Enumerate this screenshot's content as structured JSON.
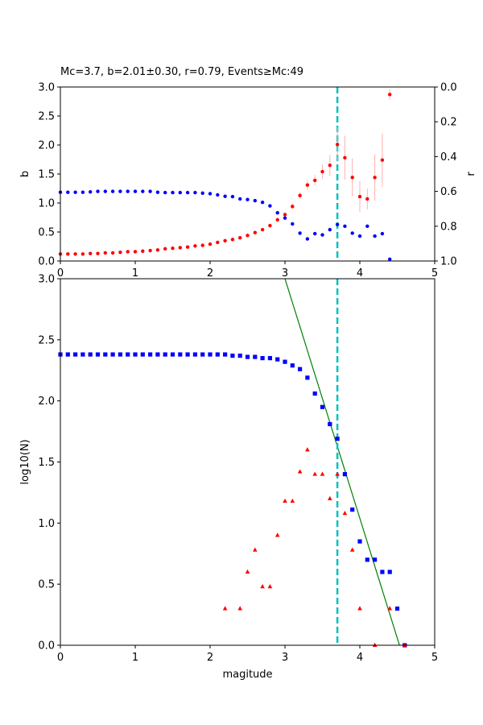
{
  "chart_data": [
    {
      "type": "scatter",
      "title": "Mc=3.7, b=2.01±0.30, r=0.79, Events≥Mc:49",
      "xlabel": "",
      "ylabel": "b",
      "y2label": "r",
      "xlim": [
        0,
        5
      ],
      "ylim": [
        0,
        3
      ],
      "y2lim": [
        1.0,
        0.0
      ],
      "xticks": [
        "0",
        "1",
        "2",
        "3",
        "4",
        "5"
      ],
      "yticks": [
        "0.0",
        "0.5",
        "1.0",
        "1.5",
        "2.0",
        "2.5",
        "3.0"
      ],
      "y2ticks": [
        "0.0",
        "0.2",
        "0.4",
        "0.6",
        "0.8",
        "1.0"
      ],
      "grid": false,
      "mc_line": 3.7,
      "series": [
        {
          "name": "",
          "axis": "left",
          "color": "#ff0000",
          "marker": "circle",
          "x": [
            0.0,
            0.1,
            0.2,
            0.3,
            0.4,
            0.5,
            0.6,
            0.7,
            0.8,
            0.9,
            1.0,
            1.1,
            1.2,
            1.3,
            1.4,
            1.5,
            1.6,
            1.7,
            1.8,
            1.9,
            2.0,
            2.1,
            2.2,
            2.3,
            2.4,
            2.5,
            2.6,
            2.7,
            2.8,
            2.9,
            3.0,
            3.1,
            3.2,
            3.3,
            3.4,
            3.5,
            3.6,
            3.7,
            3.8,
            3.9,
            4.0,
            4.1,
            4.2,
            4.3,
            4.4
          ],
          "y": [
            0.12,
            0.12,
            0.12,
            0.12,
            0.13,
            0.13,
            0.14,
            0.14,
            0.15,
            0.16,
            0.16,
            0.17,
            0.18,
            0.19,
            0.21,
            0.22,
            0.23,
            0.24,
            0.26,
            0.27,
            0.29,
            0.32,
            0.35,
            0.37,
            0.4,
            0.44,
            0.49,
            0.54,
            0.61,
            0.71,
            0.8,
            0.94,
            1.13,
            1.31,
            1.39,
            1.54,
            1.65,
            2.01,
            1.78,
            1.44,
            1.11,
            1.07,
            1.44,
            1.74,
            2.87
          ],
          "err": [
            0,
            0,
            0,
            0,
            0,
            0,
            0,
            0,
            0,
            0,
            0,
            0,
            0,
            0,
            0,
            0,
            0,
            0,
            0,
            0,
            0,
            0,
            0,
            0,
            0,
            0,
            0,
            0,
            0,
            0.03,
            0.04,
            0.05,
            0.06,
            0.08,
            0.09,
            0.12,
            0.18,
            0.3,
            0.38,
            0.33,
            0.27,
            0.18,
            0.4,
            0.46,
            0.09
          ]
        },
        {
          "name": "",
          "axis": "right",
          "color": "#0000ff",
          "marker": "circle",
          "x": [
            0.0,
            0.1,
            0.2,
            0.3,
            0.4,
            0.5,
            0.6,
            0.7,
            0.8,
            0.9,
            1.0,
            1.1,
            1.2,
            1.3,
            1.4,
            1.5,
            1.6,
            1.7,
            1.8,
            1.9,
            2.0,
            2.1,
            2.2,
            2.3,
            2.4,
            2.5,
            2.6,
            2.7,
            2.8,
            2.9,
            3.0,
            3.1,
            3.2,
            3.3,
            3.4,
            3.5,
            3.6,
            3.7,
            3.8,
            3.9,
            4.0,
            4.1,
            4.2,
            4.3,
            4.4
          ],
          "y": [
            0.605,
            0.605,
            0.605,
            0.605,
            0.603,
            0.6,
            0.6,
            0.6,
            0.6,
            0.6,
            0.6,
            0.6,
            0.6,
            0.605,
            0.607,
            0.607,
            0.607,
            0.607,
            0.607,
            0.61,
            0.613,
            0.62,
            0.628,
            0.63,
            0.643,
            0.647,
            0.653,
            0.663,
            0.683,
            0.723,
            0.753,
            0.787,
            0.84,
            0.873,
            0.843,
            0.85,
            0.82,
            0.79,
            0.8,
            0.84,
            0.857,
            0.8,
            0.857,
            0.843,
            0.99
          ]
        }
      ]
    },
    {
      "type": "scatter",
      "title": "",
      "xlabel": "magitude",
      "ylabel": "log10(N)",
      "xlim": [
        0,
        5
      ],
      "ylim": [
        0,
        3
      ],
      "xticks": [
        "0",
        "1",
        "2",
        "3",
        "4",
        "5"
      ],
      "yticks": [
        "0.0",
        "0.5",
        "1.0",
        "1.5",
        "2.0",
        "2.5",
        "3.0"
      ],
      "grid": false,
      "mc_line": 3.7,
      "fit_line": {
        "color": "#008000",
        "x": [
          3.0,
          4.53
        ],
        "y": [
          3.0,
          0.0
        ]
      },
      "series": [
        {
          "name": "",
          "color": "#0000ff",
          "marker": "square",
          "x": [
            0.0,
            0.1,
            0.2,
            0.3,
            0.4,
            0.5,
            0.6,
            0.7,
            0.8,
            0.9,
            1.0,
            1.1,
            1.2,
            1.3,
            1.4,
            1.5,
            1.6,
            1.7,
            1.8,
            1.9,
            2.0,
            2.1,
            2.2,
            2.3,
            2.4,
            2.5,
            2.6,
            2.7,
            2.8,
            2.9,
            3.0,
            3.1,
            3.2,
            3.3,
            3.4,
            3.5,
            3.6,
            3.7,
            3.8,
            3.9,
            4.0,
            4.1,
            4.2,
            4.3,
            4.4,
            4.5,
            4.6
          ],
          "y": [
            2.38,
            2.38,
            2.38,
            2.38,
            2.38,
            2.38,
            2.38,
            2.38,
            2.38,
            2.38,
            2.38,
            2.38,
            2.38,
            2.38,
            2.38,
            2.38,
            2.38,
            2.38,
            2.38,
            2.38,
            2.38,
            2.38,
            2.38,
            2.37,
            2.37,
            2.36,
            2.36,
            2.35,
            2.35,
            2.34,
            2.32,
            2.29,
            2.26,
            2.19,
            2.06,
            1.95,
            1.81,
            1.69,
            1.4,
            1.11,
            0.85,
            0.7,
            0.7,
            0.6,
            0.6,
            0.3,
            0.0
          ]
        },
        {
          "name": "",
          "color": "#ff0000",
          "marker": "triangle",
          "x": [
            2.2,
            2.4,
            2.5,
            2.6,
            2.7,
            2.8,
            2.9,
            3.0,
            3.1,
            3.2,
            3.3,
            3.4,
            3.5,
            3.6,
            3.7,
            3.8,
            3.9,
            4.0,
            4.2,
            4.4,
            4.6
          ],
          "y": [
            0.3,
            0.3,
            0.6,
            0.78,
            0.48,
            0.48,
            0.9,
            1.18,
            1.18,
            1.42,
            1.6,
            1.4,
            1.4,
            1.2,
            1.4,
            1.08,
            0.78,
            0.3,
            0.0,
            0.3,
            0.0
          ]
        }
      ]
    }
  ]
}
